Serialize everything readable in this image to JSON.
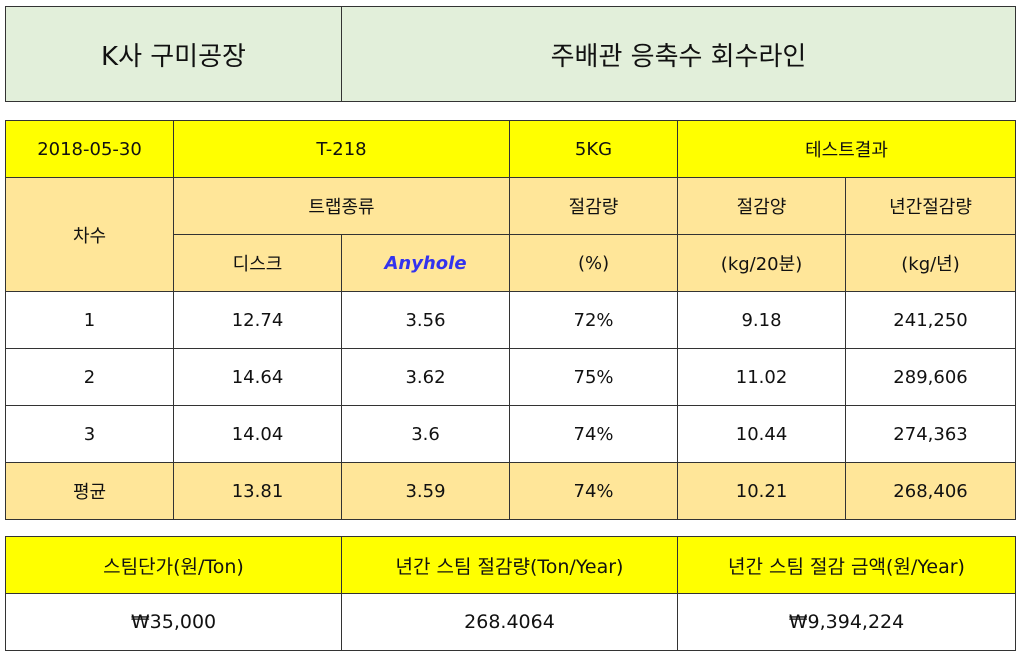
{
  "header": {
    "company": "K사 구미공장",
    "line": "주배관 응축수 회수라인"
  },
  "info": {
    "date": "2018-05-30",
    "model": "T-218",
    "pressure": "5KG",
    "label": "테스트결과"
  },
  "columns": {
    "round": "차수",
    "trap_type": "트랩종류",
    "disc": "디스크",
    "anyhole": "Anyhole",
    "saving_rate": "절감량",
    "saving_rate_unit": "(%)",
    "saving_amount": "절감양",
    "saving_amount_unit": "(kg/20분)",
    "annual_saving": "년간절감량",
    "annual_saving_unit": "(kg/년)"
  },
  "rows": [
    {
      "round": "1",
      "disc": "12.74",
      "anyhole": "3.56",
      "rate": "72%",
      "amount": "9.18",
      "annual": "241,250"
    },
    {
      "round": "2",
      "disc": "14.64",
      "anyhole": "3.62",
      "rate": "75%",
      "amount": "11.02",
      "annual": "289,606"
    },
    {
      "round": "3",
      "disc": "14.04",
      "anyhole": "3.6",
      "rate": "74%",
      "amount": "10.44",
      "annual": "274,363"
    }
  ],
  "average": {
    "label": "평균",
    "disc": "13.81",
    "anyhole": "3.59",
    "rate": "74%",
    "amount": "10.21",
    "annual": "268,406"
  },
  "summary": {
    "headers": [
      "스팀단가(원/Ton)",
      "년간 스팀 절감량(Ton/Year)",
      "년간 스팀 절감 금액(원/Year)"
    ],
    "values": [
      "₩35,000",
      "268.4064",
      "₩9,394,224"
    ]
  },
  "colors": {
    "header_green": "#e2efda",
    "yellow": "#ffff00",
    "tan": "#ffe699",
    "anyhole_blue": "#3333ee"
  }
}
